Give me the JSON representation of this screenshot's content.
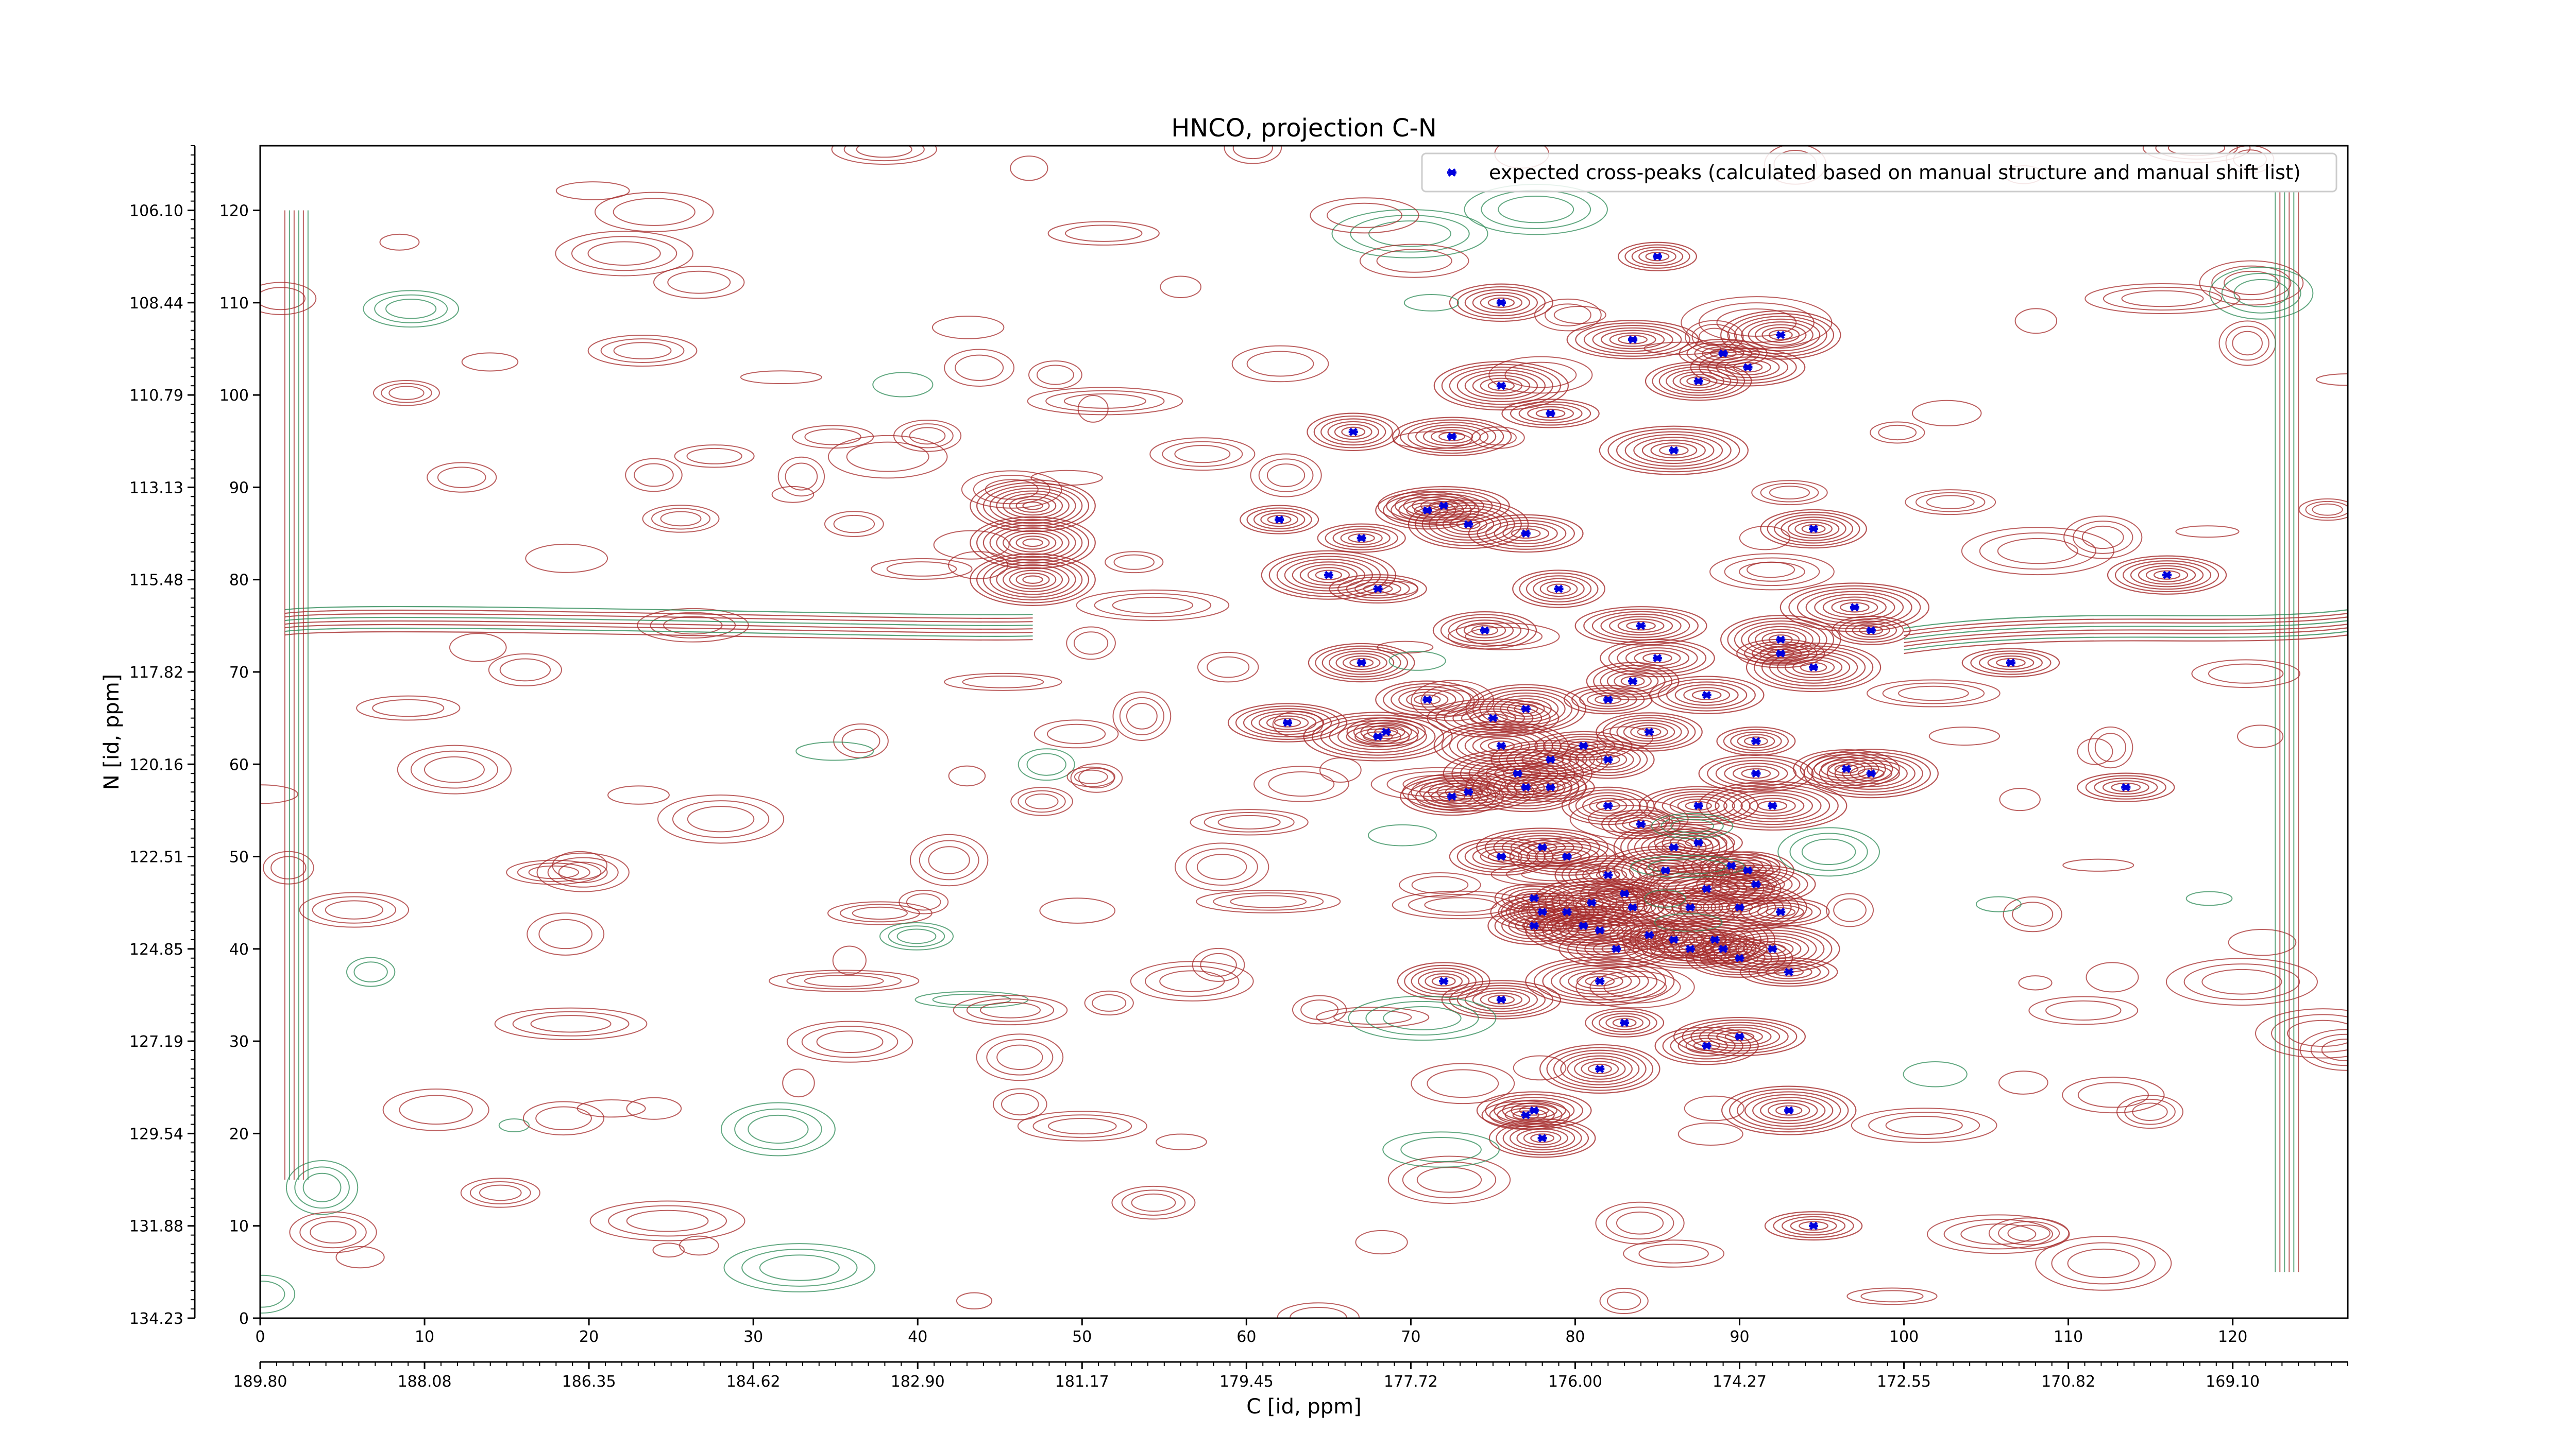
{
  "chart_data": {
    "type": "scatter",
    "title": "HNCO, projection C-N",
    "xlabel": "C [id, ppm]",
    "ylabel": "N [id, ppm]",
    "x_index_ticks": [
      "0",
      "10",
      "20",
      "30",
      "40",
      "50",
      "60",
      "70",
      "80",
      "90",
      "100",
      "110",
      "120"
    ],
    "x_ppm_ticks": [
      "189.80",
      "188.08",
      "186.35",
      "184.62",
      "182.90",
      "181.17",
      "179.45",
      "177.72",
      "176.00",
      "174.27",
      "172.55",
      "170.82",
      "169.10"
    ],
    "y_index_ticks": [
      "0",
      "10",
      "20",
      "30",
      "40",
      "50",
      "60",
      "70",
      "80",
      "90",
      "100",
      "110",
      "120"
    ],
    "y_ppm_ticks": [
      "134.23",
      "131.88",
      "129.54",
      "127.19",
      "124.85",
      "122.51",
      "120.16",
      "117.82",
      "115.48",
      "113.13",
      "110.79",
      "108.44",
      "106.10"
    ],
    "xlim": [
      0,
      127
    ],
    "ylim": [
      0,
      127
    ],
    "legend_position": "top-right",
    "colors": {
      "marker": "#0000dd",
      "contour_positive": "#a52a2a",
      "contour_negative": "#2e8b57"
    },
    "series": [
      {
        "name": "expected cross-peaks (calculated based on manual structure and manual shift list)",
        "points": [
          [
            85.0,
            115.0
          ],
          [
            75.5,
            110.0
          ],
          [
            83.5,
            106.0
          ],
          [
            92.5,
            106.5
          ],
          [
            89.0,
            104.5
          ],
          [
            90.5,
            103.0
          ],
          [
            87.5,
            101.5
          ],
          [
            75.5,
            101.0
          ],
          [
            78.5,
            98.0
          ],
          [
            66.5,
            96.0
          ],
          [
            72.5,
            95.5
          ],
          [
            86.0,
            94.0
          ],
          [
            62.0,
            86.5
          ],
          [
            71.0,
            87.5
          ],
          [
            72.0,
            88.0
          ],
          [
            73.5,
            86.0
          ],
          [
            67.0,
            84.5
          ],
          [
            77.0,
            85.0
          ],
          [
            94.5,
            85.5
          ],
          [
            65.0,
            80.5
          ],
          [
            68.0,
            79.0
          ],
          [
            79.0,
            79.0
          ],
          [
            116.0,
            80.5
          ],
          [
            97.0,
            77.0
          ],
          [
            98.0,
            74.5
          ],
          [
            74.5,
            74.5
          ],
          [
            84.0,
            75.0
          ],
          [
            92.5,
            73.5
          ],
          [
            92.5,
            72.0
          ],
          [
            85.0,
            71.5
          ],
          [
            67.0,
            71.0
          ],
          [
            94.5,
            70.5
          ],
          [
            106.5,
            71.0
          ],
          [
            83.5,
            69.0
          ],
          [
            62.5,
            64.5
          ],
          [
            68.0,
            63.0
          ],
          [
            68.5,
            63.5
          ],
          [
            71.0,
            67.0
          ],
          [
            75.0,
            65.0
          ],
          [
            77.0,
            66.0
          ],
          [
            82.0,
            67.0
          ],
          [
            88.0,
            67.5
          ],
          [
            84.5,
            63.5
          ],
          [
            75.5,
            62.0
          ],
          [
            80.5,
            62.0
          ],
          [
            82.0,
            60.5
          ],
          [
            78.5,
            60.5
          ],
          [
            76.5,
            59.0
          ],
          [
            91.0,
            62.5
          ],
          [
            72.5,
            56.5
          ],
          [
            73.5,
            57.0
          ],
          [
            77.0,
            57.5
          ],
          [
            78.5,
            57.5
          ],
          [
            91.0,
            59.0
          ],
          [
            96.5,
            59.5
          ],
          [
            98.0,
            59.0
          ],
          [
            113.5,
            57.5
          ],
          [
            82.0,
            55.5
          ],
          [
            87.5,
            55.5
          ],
          [
            92.0,
            55.5
          ],
          [
            84.0,
            53.5
          ],
          [
            75.5,
            50.0
          ],
          [
            78.0,
            51.0
          ],
          [
            86.0,
            51.0
          ],
          [
            87.5,
            51.5
          ],
          [
            79.5,
            50.0
          ],
          [
            82.0,
            48.0
          ],
          [
            85.5,
            48.5
          ],
          [
            89.5,
            49.0
          ],
          [
            90.5,
            48.5
          ],
          [
            91.0,
            47.0
          ],
          [
            88.0,
            46.5
          ],
          [
            77.5,
            45.5
          ],
          [
            78.0,
            44.0
          ],
          [
            79.5,
            44.0
          ],
          [
            81.0,
            45.0
          ],
          [
            83.0,
            46.0
          ],
          [
            83.5,
            44.5
          ],
          [
            87.0,
            44.5
          ],
          [
            90.0,
            44.5
          ],
          [
            92.5,
            44.0
          ],
          [
            77.5,
            42.5
          ],
          [
            80.5,
            42.5
          ],
          [
            81.5,
            42.0
          ],
          [
            84.5,
            41.5
          ],
          [
            86.0,
            41.0
          ],
          [
            87.0,
            40.0
          ],
          [
            88.5,
            41.0
          ],
          [
            89.0,
            40.0
          ],
          [
            82.5,
            40.0
          ],
          [
            90.0,
            39.0
          ],
          [
            92.0,
            40.0
          ],
          [
            93.0,
            37.5
          ],
          [
            72.0,
            36.5
          ],
          [
            75.5,
            34.5
          ],
          [
            81.5,
            36.5
          ],
          [
            83.0,
            32.0
          ],
          [
            88.0,
            29.5
          ],
          [
            90.0,
            30.5
          ],
          [
            81.5,
            27.0
          ],
          [
            77.0,
            22.0
          ],
          [
            77.5,
            22.5
          ],
          [
            78.0,
            19.5
          ],
          [
            93.0,
            22.5
          ],
          [
            94.5,
            10.0
          ]
        ]
      }
    ]
  }
}
